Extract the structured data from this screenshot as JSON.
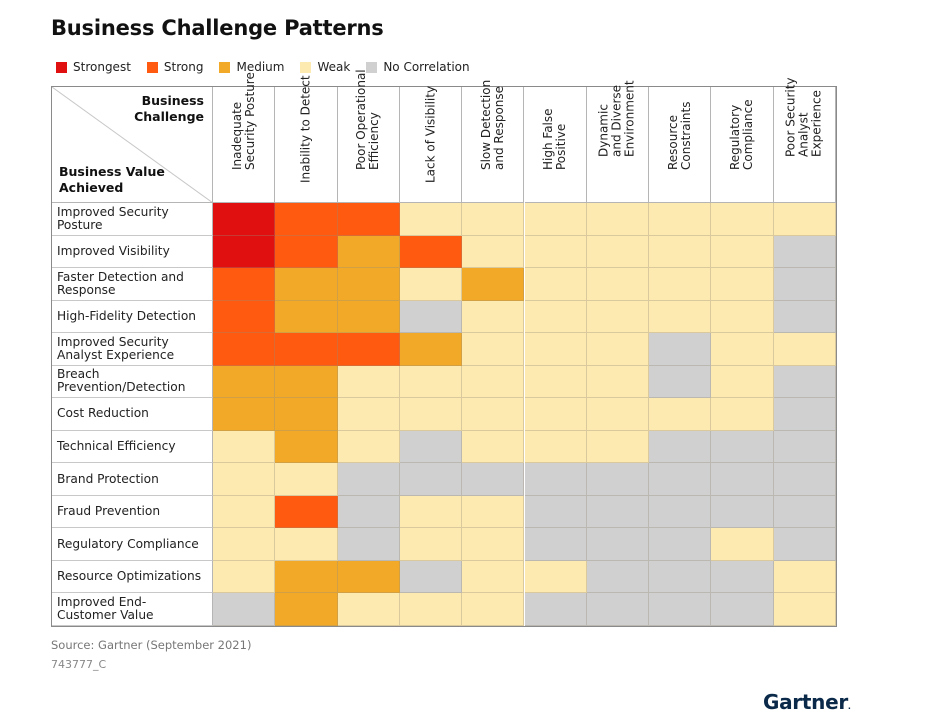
{
  "chart_data": {
    "type": "heatmap",
    "title": "Business Challenge Patterns",
    "xlabel": "Business Challenge",
    "ylabel": "Business Value Achieved",
    "legend": [
      {
        "key": "strongest",
        "label": "Strongest",
        "color": "#e01010"
      },
      {
        "key": "strong",
        "label": "Strong",
        "color": "#ff5a0f"
      },
      {
        "key": "medium",
        "label": "Medium",
        "color": "#f2a928"
      },
      {
        "key": "weak",
        "label": "Weak",
        "color": "#fdeab0"
      },
      {
        "key": "none",
        "label": "No Correlation",
        "color": "#d0d0d0"
      }
    ],
    "legend_position": "top-left",
    "columns": [
      "Inadequate\nSecurity Posture",
      "Inability to Detect",
      "Poor Operational\nEfficiency",
      "Lack of Visibility",
      "Slow Detection\nand Response",
      "High False\nPositive",
      "Dynamic\nand Diverse\nEnvironment",
      "Resource\nConstraints",
      "Regulatory\nCompliance",
      "Poor Security\nAnalyst\nExperience"
    ],
    "rows": [
      {
        "label": "Improved Security\nPosture",
        "values": [
          "strongest",
          "strong",
          "strong",
          "weak",
          "weak",
          "weak",
          "weak",
          "weak",
          "weak",
          "weak"
        ]
      },
      {
        "label": "Improved Visibility",
        "values": [
          "strongest",
          "strong",
          "medium",
          "strong",
          "weak",
          "weak",
          "weak",
          "weak",
          "weak",
          "none"
        ]
      },
      {
        "label": "Faster Detection and\nResponse",
        "values": [
          "strong",
          "medium",
          "medium",
          "weak",
          "medium",
          "weak",
          "weak",
          "weak",
          "weak",
          "none"
        ]
      },
      {
        "label": "High-Fidelity Detection",
        "values": [
          "strong",
          "medium",
          "medium",
          "none",
          "weak",
          "weak",
          "weak",
          "weak",
          "weak",
          "none"
        ]
      },
      {
        "label": "Improved Security\nAnalyst Experience",
        "values": [
          "strong",
          "strong",
          "strong",
          "medium",
          "weak",
          "weak",
          "weak",
          "none",
          "weak",
          "weak"
        ]
      },
      {
        "label": "Breach\nPrevention/Detection",
        "values": [
          "medium",
          "medium",
          "weak",
          "weak",
          "weak",
          "weak",
          "weak",
          "none",
          "weak",
          "none"
        ]
      },
      {
        "label": "Cost Reduction",
        "values": [
          "medium",
          "medium",
          "weak",
          "weak",
          "weak",
          "weak",
          "weak",
          "weak",
          "weak",
          "none"
        ]
      },
      {
        "label": "Technical Efficiency",
        "values": [
          "weak",
          "medium",
          "weak",
          "none",
          "weak",
          "weak",
          "weak",
          "none",
          "none",
          "none"
        ]
      },
      {
        "label": "Brand Protection",
        "values": [
          "weak",
          "weak",
          "none",
          "none",
          "none",
          "none",
          "none",
          "none",
          "none",
          "none"
        ]
      },
      {
        "label": "Fraud Prevention",
        "values": [
          "weak",
          "strong",
          "none",
          "weak",
          "weak",
          "none",
          "none",
          "none",
          "none",
          "none"
        ]
      },
      {
        "label": "Regulatory Compliance",
        "values": [
          "weak",
          "weak",
          "none",
          "weak",
          "weak",
          "none",
          "none",
          "none",
          "weak",
          "none"
        ]
      },
      {
        "label": "Resource Optimizations",
        "values": [
          "weak",
          "medium",
          "medium",
          "none",
          "weak",
          "weak",
          "none",
          "none",
          "none",
          "weak"
        ]
      },
      {
        "label": "Improved End-\nCustomer Value",
        "values": [
          "none",
          "medium",
          "weak",
          "weak",
          "weak",
          "none",
          "none",
          "none",
          "none",
          "weak"
        ]
      }
    ]
  },
  "header": {
    "corner_top": "Business\nChallenge",
    "corner_bottom": "Business Value\nAchieved"
  },
  "footer": {
    "source": "Source: Gartner (September 2021)",
    "doc_id": "743777_C",
    "logo": "Gartner",
    "logo_dot": "."
  }
}
